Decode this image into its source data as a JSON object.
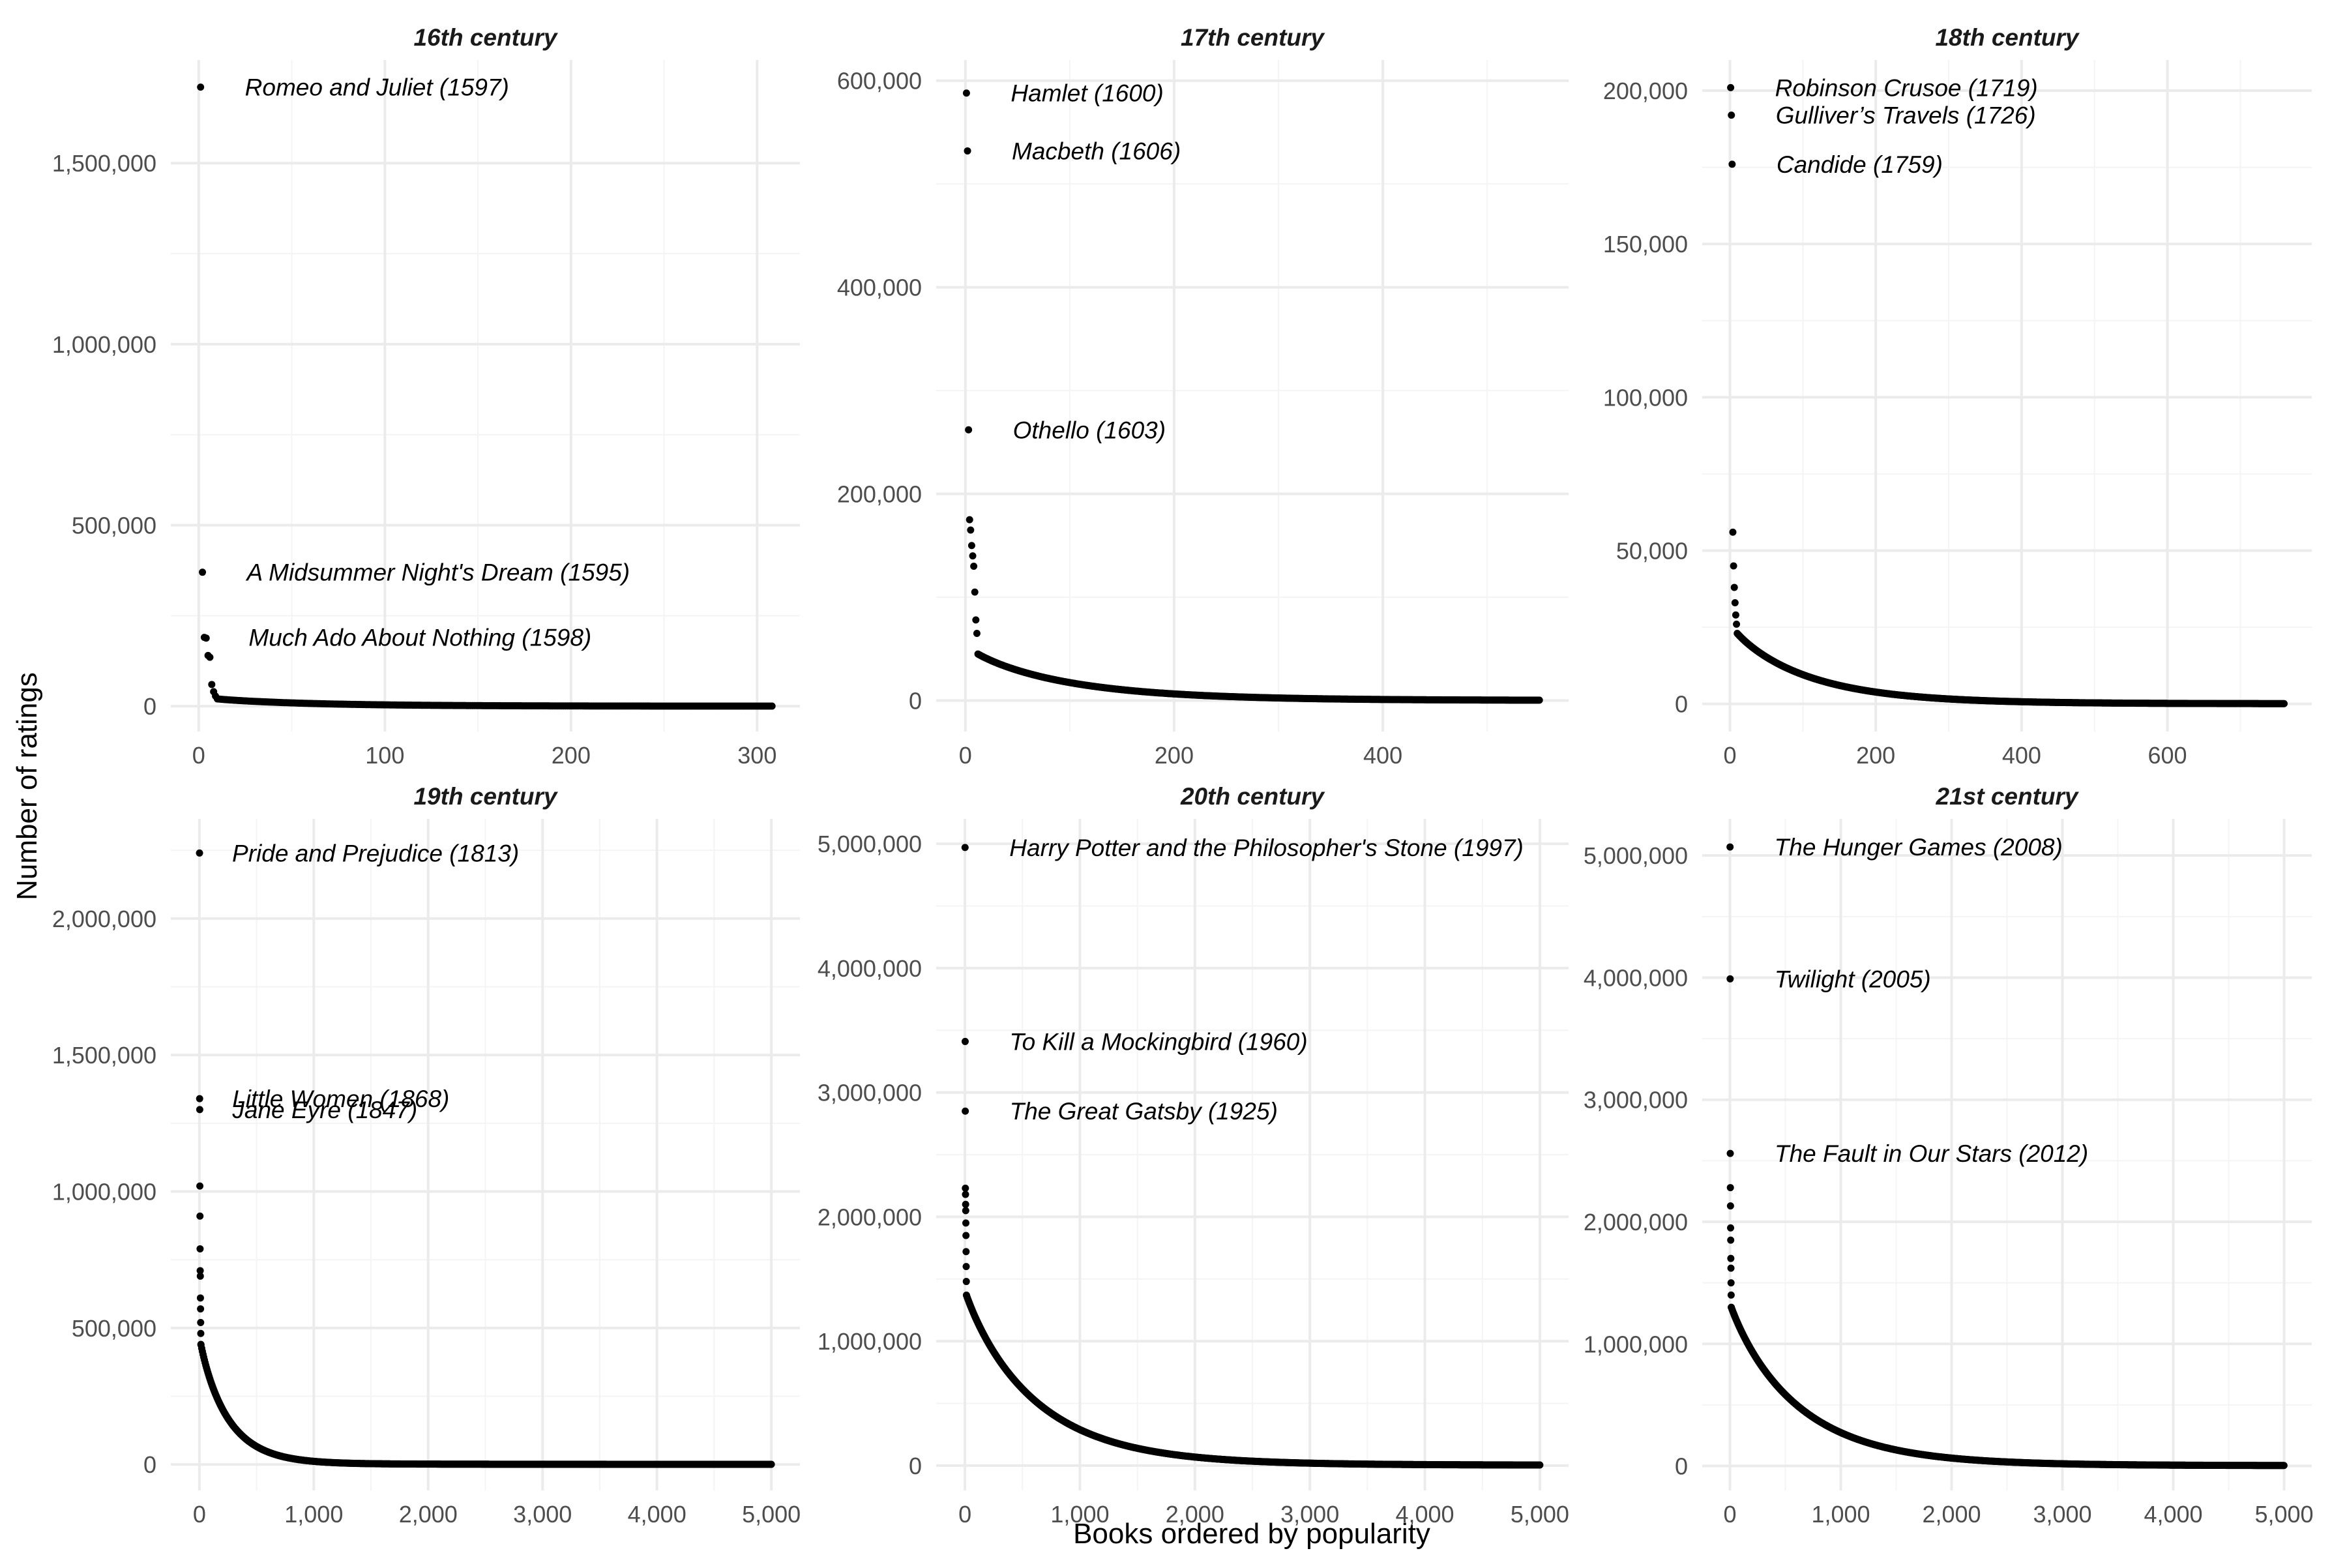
{
  "xlabel": "Books ordered by popularity",
  "ylabel": "Number of ratings",
  "point_color": "#000000",
  "chart_data": [
    {
      "type": "scatter",
      "title": "16th century",
      "n_books": 308,
      "xlim": [
        -15,
        323
      ],
      "ylim": [
        -70000,
        1785000
      ],
      "x_ticks": [
        0,
        100,
        200,
        300
      ],
      "x_tick_labels": [
        "0",
        "100",
        "200",
        "300"
      ],
      "y_ticks": [
        0,
        500000,
        1000000,
        1500000
      ],
      "y_tick_labels": [
        "0",
        "500,000",
        "1,000,000",
        "1,500,000"
      ],
      "x_minor": [
        50,
        150,
        250
      ],
      "y_minor": [
        250000,
        750000,
        1250000
      ],
      "head_values": [
        1710000,
        370000,
        190000,
        188000,
        140000,
        135000,
        60000,
        40000,
        28000,
        20000
      ],
      "decay": 25,
      "points": [
        {
          "x": 1,
          "y": 1710000,
          "label": "Romeo and Juliet (1597)"
        },
        {
          "x": 2,
          "y": 370000,
          "label": "A Midsummer Night's Dream (1595)"
        },
        {
          "x": 3,
          "y": 190000,
          "label": "Much Ado About Nothing (1598)"
        }
      ]
    },
    {
      "type": "scatter",
      "title": "17th century",
      "n_books": 550,
      "xlim": [
        -28,
        578
      ],
      "ylim": [
        -30000,
        620000
      ],
      "x_ticks": [
        0,
        200,
        400
      ],
      "x_tick_labels": [
        "0",
        "200",
        "400"
      ],
      "y_ticks": [
        0,
        200000,
        400000,
        600000
      ],
      "y_tick_labels": [
        "0",
        "200,000",
        "400,000",
        "600,000"
      ],
      "x_minor": [
        100,
        300,
        500
      ],
      "y_minor": [
        100000,
        300000,
        500000
      ],
      "head_values": [
        588000,
        532000,
        262000,
        175000,
        165000,
        150000,
        140000,
        130000,
        105000,
        78000,
        65000,
        45000
      ],
      "decay": 45,
      "points": [
        {
          "x": 1,
          "y": 588000,
          "label": "Hamlet (1600)"
        },
        {
          "x": 2,
          "y": 532000,
          "label": "Macbeth (1606)"
        },
        {
          "x": 3,
          "y": 262000,
          "label": "Othello (1603)"
        }
      ]
    },
    {
      "type": "scatter",
      "title": "18th century",
      "n_books": 760,
      "xlim": [
        -38,
        798
      ],
      "ylim": [
        -9000,
        210000
      ],
      "x_ticks": [
        0,
        200,
        400,
        600
      ],
      "x_tick_labels": [
        "0",
        "200",
        "400",
        "600"
      ],
      "y_ticks": [
        0,
        50000,
        100000,
        150000,
        200000
      ],
      "y_tick_labels": [
        "0",
        "50,000",
        "100,000",
        "150,000",
        "200,000"
      ],
      "x_minor": [
        100,
        300,
        500,
        700
      ],
      "y_minor": [
        25000,
        75000,
        125000,
        175000
      ],
      "head_values": [
        201000,
        192000,
        176000,
        56000,
        45000,
        38000,
        33000,
        29000,
        26000,
        23000
      ],
      "decay": 50,
      "points": [
        {
          "x": 1,
          "y": 201000,
          "label": "Robinson Crusoe (1719)"
        },
        {
          "x": 2,
          "y": 192000,
          "label": "Gulliver’s Travels (1726)"
        },
        {
          "x": 3,
          "y": 176000,
          "label": "Candide (1759)"
        }
      ]
    },
    {
      "type": "scatter",
      "title": "19th century",
      "n_books": 5000,
      "xlim": [
        -250,
        5250
      ],
      "ylim": [
        -95000,
        2365000
      ],
      "x_ticks": [
        0,
        1000,
        2000,
        3000,
        4000,
        5000
      ],
      "x_tick_labels": [
        "0",
        "1,000",
        "2,000",
        "3,000",
        "4,000",
        "5,000"
      ],
      "y_ticks": [
        0,
        500000,
        1000000,
        1500000,
        2000000
      ],
      "y_tick_labels": [
        "0",
        "500,000",
        "1,000,000",
        "1,500,000",
        "2,000,000"
      ],
      "x_minor": [
        500,
        1500,
        2500,
        3500,
        4500
      ],
      "y_minor": [
        250000,
        750000,
        1250000,
        1750000,
        2250000
      ],
      "head_values": [
        2240000,
        1340000,
        1300000,
        1020000,
        910000,
        790000,
        710000,
        690000,
        610000,
        570000,
        520000,
        480000,
        440000
      ],
      "decay": 120,
      "points": [
        {
          "x": 1,
          "y": 2240000,
          "label": "Pride and Prejudice (1813)"
        },
        {
          "x": 2,
          "y": 1340000,
          "label": "Little Women (1868)"
        },
        {
          "x": 3,
          "y": 1300000,
          "label": "Jane Eyre (1847)"
        }
      ]
    },
    {
      "type": "scatter",
      "title": "20th century",
      "n_books": 5000,
      "xlim": [
        -250,
        5250
      ],
      "ylim": [
        -200000,
        5200000
      ],
      "x_ticks": [
        0,
        1000,
        2000,
        3000,
        4000,
        5000
      ],
      "x_tick_labels": [
        "0",
        "1,000",
        "2,000",
        "3,000",
        "4,000",
        "5,000"
      ],
      "y_ticks": [
        0,
        1000000,
        2000000,
        3000000,
        4000000,
        5000000
      ],
      "y_tick_labels": [
        "0",
        "1,000,000",
        "2,000,000",
        "3,000,000",
        "4,000,000",
        "5,000,000"
      ],
      "x_minor": [
        500,
        1500,
        2500,
        3500,
        4500
      ],
      "y_minor": [
        500000,
        1500000,
        2500000,
        3500000,
        4500000
      ],
      "head_values": [
        4970000,
        3410000,
        2850000,
        2230000,
        2180000,
        2100000,
        2050000,
        1950000,
        1850000,
        1720000,
        1600000,
        1480000,
        1370000
      ],
      "decay": 300,
      "points": [
        {
          "x": 1,
          "y": 4970000,
          "label": "Harry Potter and the Philosopher's Stone (1997)"
        },
        {
          "x": 2,
          "y": 3410000,
          "label": "To Kill a Mockingbird (1960)"
        },
        {
          "x": 3,
          "y": 2850000,
          "label": "The Great Gatsby (1925)"
        }
      ]
    },
    {
      "type": "scatter",
      "title": "21st century",
      "n_books": 5000,
      "xlim": [
        -250,
        5250
      ],
      "ylim": [
        -200000,
        5300000
      ],
      "x_ticks": [
        0,
        1000,
        2000,
        3000,
        4000,
        5000
      ],
      "x_tick_labels": [
        "0",
        "1,000",
        "2,000",
        "3,000",
        "4,000",
        "5,000"
      ],
      "y_ticks": [
        0,
        1000000,
        2000000,
        3000000,
        4000000,
        5000000
      ],
      "y_tick_labels": [
        "0",
        "1,000,000",
        "2,000,000",
        "3,000,000",
        "4,000,000",
        "5,000,000"
      ],
      "x_minor": [
        500,
        1500,
        2500,
        3500,
        4500
      ],
      "y_minor": [
        500000,
        1500000,
        2500000,
        3500000,
        4500000
      ],
      "head_values": [
        5070000,
        3990000,
        2560000,
        2280000,
        2130000,
        1950000,
        1850000,
        1700000,
        1620000,
        1500000,
        1400000,
        1300000
      ],
      "decay": 300,
      "points": [
        {
          "x": 1,
          "y": 5070000,
          "label": "The Hunger Games (2008)"
        },
        {
          "x": 2,
          "y": 3990000,
          "label": "Twilight (2005)"
        },
        {
          "x": 3,
          "y": 2560000,
          "label": "The Fault in Our Stars (2012)"
        }
      ]
    }
  ]
}
